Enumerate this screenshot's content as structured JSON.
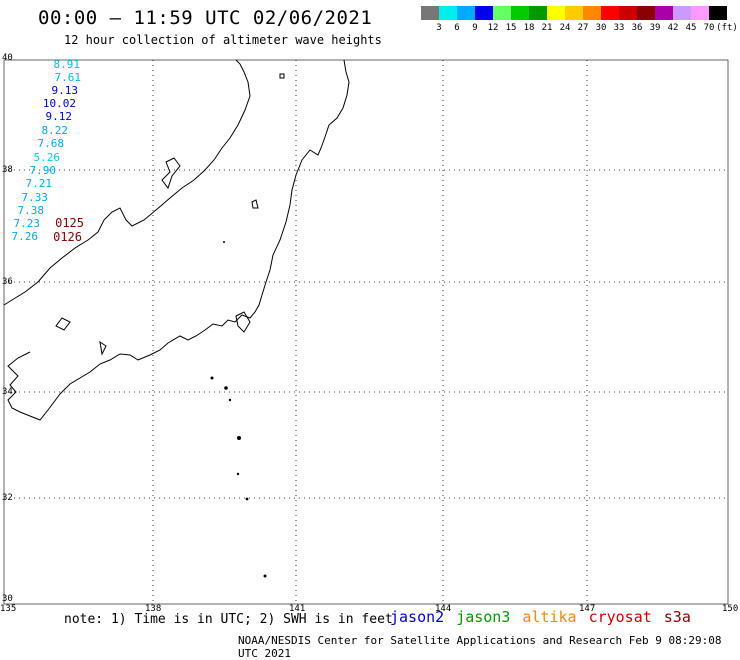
{
  "header": {
    "title": "00:00 – 11:59 UTC 02/06/2021",
    "subtitle": "12 hour collection of altimeter wave heights"
  },
  "color_scale": {
    "swatches": [
      "#777777",
      "#00eeee",
      "#00aaff",
      "#0000ee",
      "#66ff66",
      "#00cc00",
      "#009900",
      "#ffff00",
      "#ffcc00",
      "#ff8800",
      "#ff0000",
      "#cc0000",
      "#880000",
      "#aa00aa",
      "#cc99ff",
      "#ff99ff",
      "#000000"
    ],
    "labels": [
      "3",
      "6",
      "9",
      "12",
      "15",
      "18",
      "21",
      "24",
      "27",
      "30",
      "33",
      "36",
      "39",
      "42",
      "45",
      "70",
      "(ft)"
    ]
  },
  "axes": {
    "lat_labels": [
      "40",
      "38",
      "36",
      "34",
      "32",
      "30"
    ],
    "lon_labels": [
      "135",
      "138",
      "141",
      "144",
      "147",
      "150"
    ]
  },
  "wave_values": [
    {
      "text": "8.91",
      "color": "#00bbdd"
    },
    {
      "text": "7.61",
      "color": "#00bbdd"
    },
    {
      "text": "9.13",
      "color": "#0000cc"
    },
    {
      "text": "10.02",
      "color": "#0000cc"
    },
    {
      "text": "9.12",
      "color": "#0000cc"
    },
    {
      "text": "8.22",
      "color": "#00aaee"
    },
    {
      "text": "7.68",
      "color": "#00aaee"
    },
    {
      "text": "5.26",
      "color": "#00ccdd"
    },
    {
      "text": "7.90",
      "color": "#00aaee"
    },
    {
      "text": "7.21",
      "color": "#00aaee"
    },
    {
      "text": "7.33",
      "color": "#00aaee"
    },
    {
      "text": "7.38",
      "color": "#00aaee"
    },
    {
      "text": "7.23",
      "color": "#00aaee"
    },
    {
      "text": "7.26",
      "color": "#00aaee"
    }
  ],
  "time_labels": [
    {
      "text": "0125",
      "color": "#880000"
    },
    {
      "text": "0126",
      "color": "#880000"
    }
  ],
  "footer": {
    "note": "note: 1) Time is in UTC; 2) SWH is in feet",
    "satellites": [
      {
        "name": "jason2",
        "color": "#0000cc"
      },
      {
        "name": "jason3",
        "color": "#009900"
      },
      {
        "name": "altika",
        "color": "#ff8800"
      },
      {
        "name": "cryosat",
        "color": "#cc0000"
      },
      {
        "name": "s3a",
        "color": "#880000"
      }
    ],
    "credit": "NOAA/NESDIS Center for Satellite Applications and Research   Feb  9 08:29:08 UTC 2021"
  }
}
